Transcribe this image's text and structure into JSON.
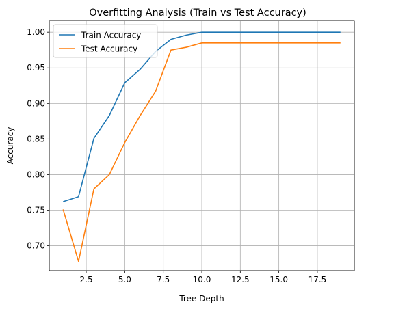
{
  "chart_data": {
    "type": "line",
    "title": "Overfitting Analysis (Train vs Test Accuracy)",
    "xlabel": "Tree Depth",
    "ylabel": "Accuracy",
    "xlim": [
      0.1,
      19.9
    ],
    "ylim": [
      0.665,
      1.0165
    ],
    "xticks": [
      2.5,
      5.0,
      7.5,
      10.0,
      12.5,
      15.0,
      17.5
    ],
    "xtick_labels": [
      "2.5",
      "5.0",
      "7.5",
      "10.0",
      "12.5",
      "15.0",
      "17.5"
    ],
    "yticks": [
      0.7,
      0.75,
      0.8,
      0.85,
      0.9,
      0.95,
      1.0
    ],
    "ytick_labels": [
      "0.70",
      "0.75",
      "0.80",
      "0.85",
      "0.90",
      "0.95",
      "1.00"
    ],
    "grid": true,
    "legend_position": "top-left",
    "x": [
      1,
      2,
      3,
      4,
      5,
      6,
      7,
      8,
      9,
      10,
      11,
      12,
      13,
      14,
      15,
      16,
      17,
      18,
      19
    ],
    "series": [
      {
        "name": "Train Accuracy",
        "color": "#1f77b4",
        "values": [
          0.762,
          0.769,
          0.851,
          0.883,
          0.929,
          0.948,
          0.973,
          0.99,
          0.996,
          1.0,
          1.0,
          1.0,
          1.0,
          1.0,
          1.0,
          1.0,
          1.0,
          1.0,
          1.0
        ]
      },
      {
        "name": "Test Accuracy",
        "color": "#ff7f0e",
        "values": [
          0.751,
          0.678,
          0.78,
          0.8,
          0.845,
          0.883,
          0.917,
          0.975,
          0.979,
          0.985,
          0.985,
          0.985,
          0.985,
          0.985,
          0.985,
          0.985,
          0.985,
          0.985,
          0.985
        ]
      }
    ]
  }
}
